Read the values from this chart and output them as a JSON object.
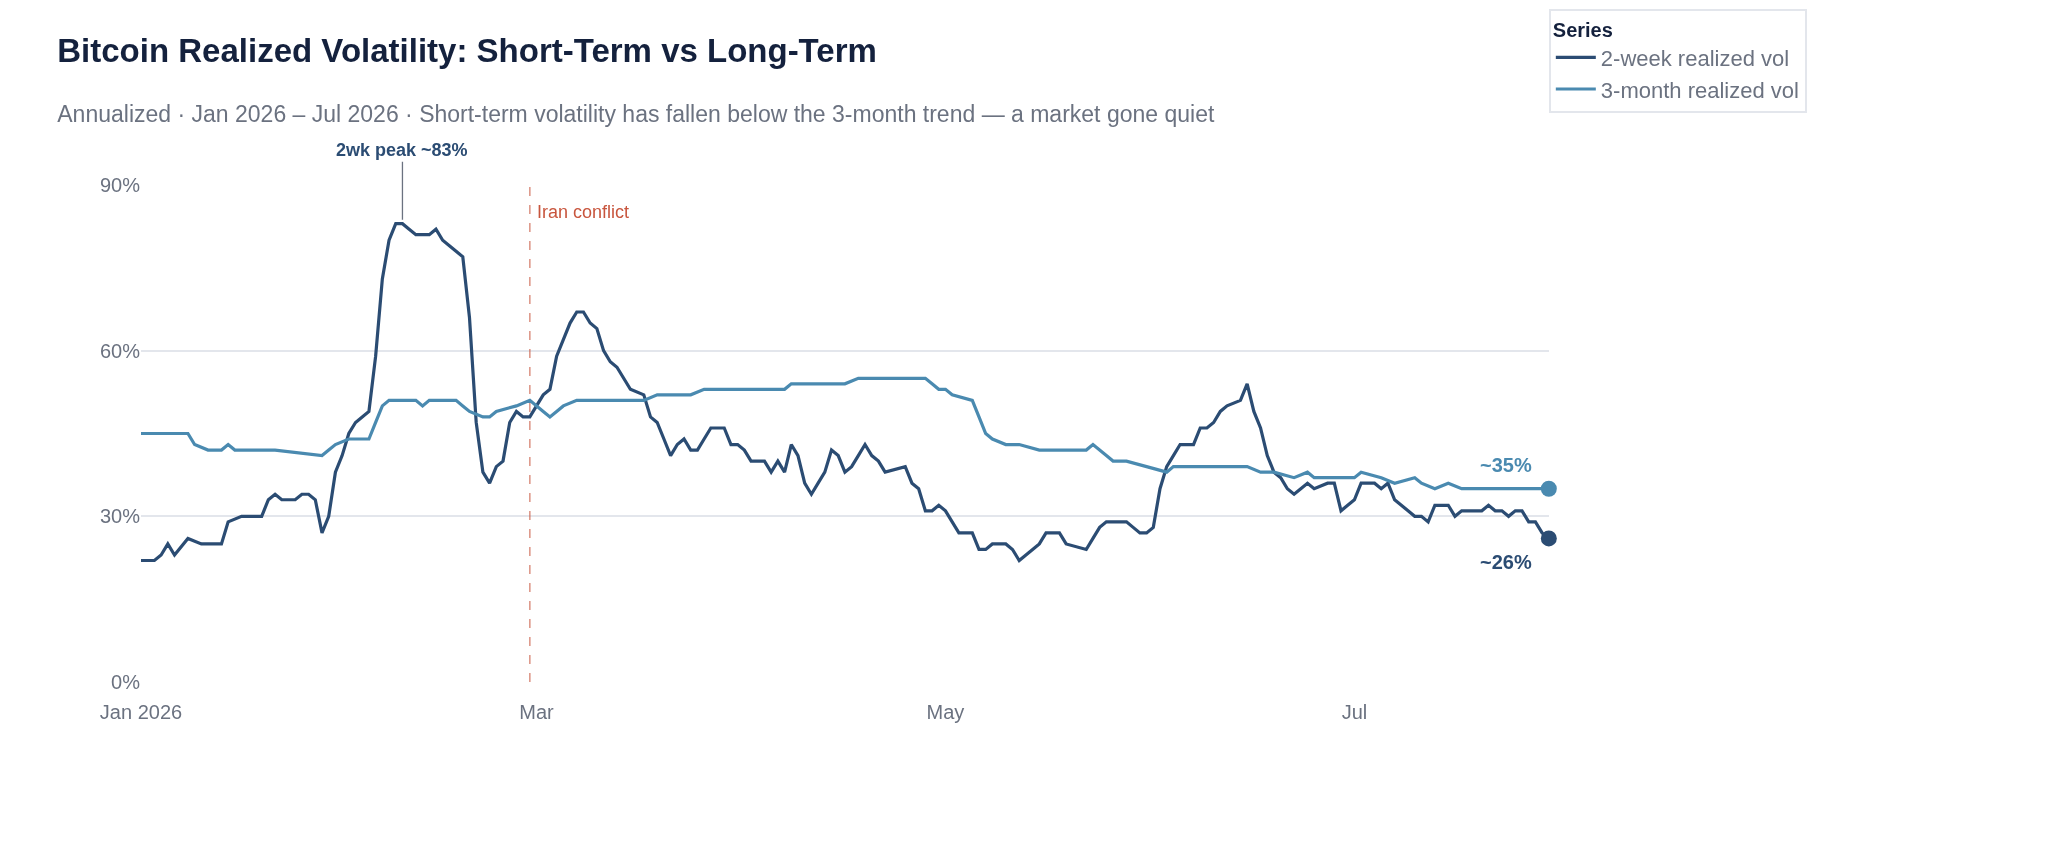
{
  "chart_data": {
    "type": "line",
    "title": "Bitcoin Realized Volatility: Short-Term vs Long-Term",
    "subtitle": "Annualized · Jan 2026 – Jul 2026 · Short-term volatility has fallen below the 3-month trend — a market gone quiet",
    "legend_title": "Series",
    "legend": "top right",
    "grid": "y",
    "line_style": "solid",
    "xlim": [
      "2026-01-01",
      "2026-07-30"
    ],
    "xticks": [
      {
        "value": "2026-01-01",
        "label": "Jan 2026"
      },
      {
        "value": "2026-03-01",
        "label": "Mar"
      },
      {
        "value": "2026-05-01",
        "label": "May"
      },
      {
        "value": "2026-07-01",
        "label": "Jul"
      }
    ],
    "ylim": [
      0,
      90
    ],
    "yticks": [
      {
        "value": 0,
        "label": "0%"
      },
      {
        "value": 30,
        "label": "30%"
      },
      {
        "value": 60,
        "label": "60%"
      },
      {
        "value": 90,
        "label": "90%"
      }
    ],
    "series": [
      {
        "name": "2-week realized vol",
        "color": "#2b4c73",
        "x": [
          "2026-01-01",
          "2026-01-03",
          "2026-01-04",
          "2026-01-05",
          "2026-01-06",
          "2026-01-08",
          "2026-01-10",
          "2026-01-11",
          "2026-01-12",
          "2026-01-13",
          "2026-01-14",
          "2026-01-16",
          "2026-01-18",
          "2026-01-19",
          "2026-01-20",
          "2026-01-21",
          "2026-01-22",
          "2026-01-24",
          "2026-01-25",
          "2026-01-26",
          "2026-01-27",
          "2026-01-28",
          "2026-01-29",
          "2026-01-30",
          "2026-01-31",
          "2026-02-01",
          "2026-02-02",
          "2026-02-03",
          "2026-02-04",
          "2026-02-05",
          "2026-02-06",
          "2026-02-07",
          "2026-02-08",
          "2026-02-09",
          "2026-02-10",
          "2026-02-11",
          "2026-02-12",
          "2026-02-13",
          "2026-02-14",
          "2026-02-15",
          "2026-02-16",
          "2026-02-17",
          "2026-02-18",
          "2026-02-19",
          "2026-02-20",
          "2026-02-21",
          "2026-02-22",
          "2026-02-23",
          "2026-02-24",
          "2026-02-25",
          "2026-02-26",
          "2026-02-27",
          "2026-02-28",
          "2026-03-02",
          "2026-03-03",
          "2026-03-04",
          "2026-03-06",
          "2026-03-07",
          "2026-03-08",
          "2026-03-09",
          "2026-03-10",
          "2026-03-11",
          "2026-03-12",
          "2026-03-13",
          "2026-03-14",
          "2026-03-15",
          "2026-03-17",
          "2026-03-18",
          "2026-03-19",
          "2026-03-20",
          "2026-03-21",
          "2026-03-22",
          "2026-03-23",
          "2026-03-24",
          "2026-03-25",
          "2026-03-26",
          "2026-03-27",
          "2026-03-28",
          "2026-03-29",
          "2026-03-30",
          "2026-03-31",
          "2026-04-01",
          "2026-04-02",
          "2026-04-04",
          "2026-04-05",
          "2026-04-06",
          "2026-04-07",
          "2026-04-08",
          "2026-04-09",
          "2026-04-10",
          "2026-04-11",
          "2026-04-12",
          "2026-04-13",
          "2026-04-14",
          "2026-04-15",
          "2026-04-16",
          "2026-04-17",
          "2026-04-18",
          "2026-04-19",
          "2026-04-20",
          "2026-04-21",
          "2026-04-22",
          "2026-04-25",
          "2026-04-26",
          "2026-04-27",
          "2026-04-28",
          "2026-04-29",
          "2026-04-30",
          "2026-05-01",
          "2026-05-03",
          "2026-05-05",
          "2026-05-06",
          "2026-05-07",
          "2026-05-08",
          "2026-05-10",
          "2026-05-11",
          "2026-05-12",
          "2026-05-13",
          "2026-05-14",
          "2026-05-15",
          "2026-05-16",
          "2026-05-17",
          "2026-05-18",
          "2026-05-19",
          "2026-05-22",
          "2026-05-23",
          "2026-05-24",
          "2026-05-25",
          "2026-05-26",
          "2026-05-28",
          "2026-05-29",
          "2026-05-30",
          "2026-05-31",
          "2026-06-01",
          "2026-06-02",
          "2026-06-03",
          "2026-06-04",
          "2026-06-05",
          "2026-06-06",
          "2026-06-07",
          "2026-06-08",
          "2026-06-09",
          "2026-06-10",
          "2026-06-11",
          "2026-06-12",
          "2026-06-14",
          "2026-06-15",
          "2026-06-16",
          "2026-06-17",
          "2026-06-18",
          "2026-06-19",
          "2026-06-20",
          "2026-06-21",
          "2026-06-22",
          "2026-06-23",
          "2026-06-24",
          "2026-06-25",
          "2026-06-27",
          "2026-06-28",
          "2026-06-29",
          "2026-06-30",
          "2026-07-01",
          "2026-07-02",
          "2026-07-04",
          "2026-07-05",
          "2026-07-06",
          "2026-07-07",
          "2026-07-08",
          "2026-07-09",
          "2026-07-10",
          "2026-07-11",
          "2026-07-12",
          "2026-07-13",
          "2026-07-14",
          "2026-07-15",
          "2026-07-16",
          "2026-07-17",
          "2026-07-20",
          "2026-07-21",
          "2026-07-22",
          "2026-07-23",
          "2026-07-24",
          "2026-07-25",
          "2026-07-26",
          "2026-07-27",
          "2026-07-28",
          "2026-07-29",
          "2026-07-30"
        ],
        "values": [
          22,
          22,
          23,
          25,
          23,
          26,
          25,
          25,
          25,
          25,
          29,
          30,
          30,
          30,
          33,
          34,
          33,
          33,
          34,
          34,
          33,
          27,
          30,
          38,
          41,
          45,
          47,
          48,
          49,
          59,
          73,
          80,
          83,
          83,
          82,
          81,
          81,
          81,
          82,
          80,
          79,
          78,
          77,
          66,
          47,
          38,
          36,
          39,
          40,
          47,
          49,
          48,
          48,
          52,
          53,
          59,
          65,
          67,
          67,
          65,
          64,
          60,
          58,
          57,
          55,
          53,
          52,
          48,
          47,
          44,
          41,
          43,
          44,
          42,
          42,
          44,
          46,
          46,
          46,
          43,
          43,
          42,
          40,
          40,
          38,
          40,
          38,
          43,
          41,
          36,
          34,
          36,
          38,
          42,
          41,
          38,
          39,
          41,
          43,
          41,
          40,
          38,
          39,
          36,
          35,
          31,
          31,
          32,
          31,
          27,
          27,
          24,
          24,
          25,
          25,
          24,
          22,
          23,
          24,
          25,
          27,
          27,
          27,
          25,
          24,
          26,
          28,
          29,
          29,
          29,
          28,
          27,
          27,
          28,
          35,
          39,
          41,
          43,
          43,
          43,
          46,
          46,
          47,
          49,
          50,
          51,
          54,
          49,
          46,
          41,
          38,
          37,
          35,
          34,
          35,
          36,
          35,
          36,
          36,
          31,
          32,
          33,
          36,
          36,
          35,
          36,
          33,
          32,
          31,
          30,
          30,
          29,
          32,
          32,
          32,
          30,
          31,
          31,
          32,
          31,
          31,
          30,
          31,
          31,
          29,
          29,
          27,
          26
        ]
      },
      {
        "name": "3-month realized vol",
        "color": "#4a8ab0",
        "x": [
          "2026-01-01",
          "2026-01-07",
          "2026-01-08",
          "2026-01-09",
          "2026-01-11",
          "2026-01-13",
          "2026-01-14",
          "2026-01-15",
          "2026-01-21",
          "2026-01-28",
          "2026-01-29",
          "2026-01-30",
          "2026-02-01",
          "2026-02-04",
          "2026-02-05",
          "2026-02-06",
          "2026-02-07",
          "2026-02-11",
          "2026-02-12",
          "2026-02-13",
          "2026-02-17",
          "2026-02-18",
          "2026-02-19",
          "2026-02-21",
          "2026-02-22",
          "2026-02-23",
          "2026-02-26",
          "2026-02-28",
          "2026-03-02",
          "2026-03-03",
          "2026-03-04",
          "2026-03-05",
          "2026-03-07",
          "2026-03-17",
          "2026-03-19",
          "2026-03-24",
          "2026-03-26",
          "2026-04-07",
          "2026-04-08",
          "2026-04-16",
          "2026-04-18",
          "2026-04-28",
          "2026-04-29",
          "2026-04-30",
          "2026-05-01",
          "2026-05-02",
          "2026-05-05",
          "2026-05-06",
          "2026-05-07",
          "2026-05-08",
          "2026-05-10",
          "2026-05-12",
          "2026-05-15",
          "2026-05-22",
          "2026-05-23",
          "2026-05-25",
          "2026-05-26",
          "2026-05-28",
          "2026-05-31",
          "2026-06-03",
          "2026-06-04",
          "2026-06-15",
          "2026-06-17",
          "2026-06-19",
          "2026-06-22",
          "2026-06-24",
          "2026-06-25",
          "2026-07-01",
          "2026-07-02",
          "2026-07-05",
          "2026-07-07",
          "2026-07-10",
          "2026-07-11",
          "2026-07-13",
          "2026-07-15",
          "2026-07-17",
          "2026-07-30"
        ],
        "values": [
          45,
          45,
          45,
          43,
          42,
          42,
          43,
          42,
          42,
          41,
          42,
          43,
          44,
          44,
          47,
          50,
          51,
          51,
          50,
          51,
          51,
          50,
          49,
          48,
          48,
          49,
          50,
          51,
          49,
          48,
          49,
          50,
          51,
          51,
          52,
          52,
          53,
          53,
          54,
          54,
          55,
          55,
          54,
          53,
          53,
          52,
          51,
          48,
          45,
          44,
          43,
          43,
          42,
          42,
          43,
          41,
          40,
          40,
          39,
          38,
          39,
          39,
          38,
          38,
          37,
          38,
          37,
          37,
          38,
          37,
          36,
          37,
          36,
          35,
          36,
          35,
          35
        ]
      }
    ],
    "ref_lines": [
      {
        "axis": "x",
        "value": "2026-02-28",
        "label": "Iran conflict",
        "color": "#c8553d",
        "line_style": "dashed"
      }
    ],
    "annotations": [
      {
        "text": "2wk peak ~83%",
        "x": "2026-02-09",
        "y": 83
      },
      {
        "text": "~35%",
        "x": "2026-07-30",
        "y": 35
      },
      {
        "text": "~26%",
        "x": "2026-07-30",
        "y": 26
      }
    ]
  }
}
